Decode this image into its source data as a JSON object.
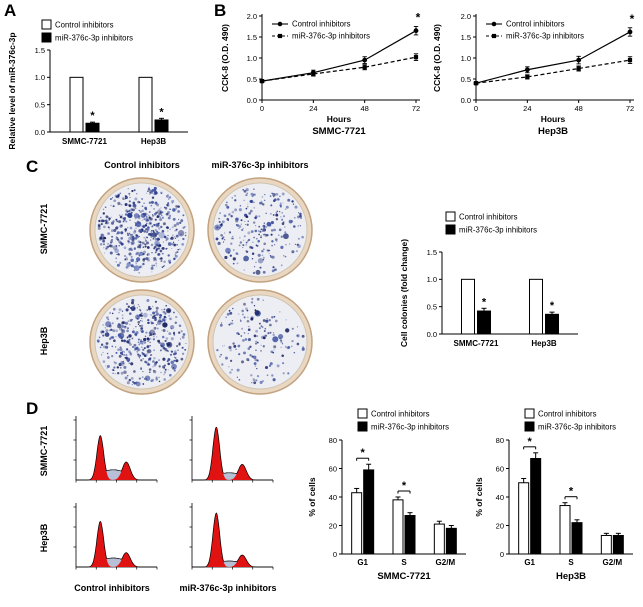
{
  "colors": {
    "bar_control": "#ffffff",
    "bar_inhibitor": "#000000",
    "axis": "#000000",
    "colony_palette": [
      "#1d2b76",
      "#2b3d92",
      "#3b51a3",
      "#16205e"
    ],
    "dish_rim": "#e9d7c2",
    "dish_rim_edge": "#c2a27f",
    "dish_inner": "#edeef3",
    "dish_inner_edge": "#cfc4b0",
    "flow_peak": "#e11212",
    "flow_s_region": "#b7c0d6"
  },
  "panel_labels": {
    "A": "A",
    "B": "B",
    "C": "C",
    "D": "D"
  },
  "panelC": {
    "col_headers": [
      "Control inhibitors",
      "miR-376c-3p inhibitors"
    ],
    "row_labels": [
      "SMMC-7721",
      "Hep3B"
    ],
    "dishes": [
      {
        "row": "SMMC-7721",
        "col": "Control inhibitors",
        "density": 520,
        "seed": 1
      },
      {
        "row": "SMMC-7721",
        "col": "miR-376c-3p inhibitors",
        "density": 250,
        "seed": 2
      },
      {
        "row": "Hep3B",
        "col": "Control inhibitors",
        "density": 430,
        "seed": 3
      },
      {
        "row": "Hep3B",
        "col": "miR-376c-3p inhibitors",
        "density": 160,
        "seed": 4
      }
    ]
  },
  "panelD": {
    "row_labels": [
      "SMMC-7721",
      "Hep3B"
    ],
    "col_labels": [
      "Control inhibitors",
      "miR-376c-3p inhibitors"
    ],
    "flow_plots": [
      {
        "row": "SMMC-7721",
        "col": "Control inhibitors",
        "g1": 0.74,
        "s": 0.17,
        "g2": 0.3
      },
      {
        "row": "SMMC-7721",
        "col": "miR-376c-3p inhibitors",
        "g1": 0.88,
        "s": 0.12,
        "g2": 0.26
      },
      {
        "row": "Hep3B",
        "col": "Control inhibitors",
        "g1": 0.76,
        "s": 0.15,
        "g2": 0.24
      },
      {
        "row": "Hep3B",
        "col": "miR-376c-3p inhibitors",
        "g1": 0.9,
        "s": 0.1,
        "g2": 0.2
      }
    ]
  },
  "chart_data": [
    {
      "id": "a_bar",
      "type": "bar",
      "ylabel": "Relative level of miR-376c-3p",
      "categories": [
        "SMMC-7721",
        "Hep3B"
      ],
      "series": [
        {
          "name": "Control inhibitors",
          "values": [
            1.0,
            1.0
          ],
          "errors": [
            0,
            0
          ]
        },
        {
          "name": "miR-376c-3p inhibitors",
          "values": [
            0.16,
            0.22
          ],
          "errors": [
            0.02,
            0.03
          ]
        }
      ],
      "ylim": [
        0,
        1.5
      ],
      "yticks": [
        0,
        0.5,
        1,
        1.5
      ],
      "sig": [
        "*",
        "*"
      ],
      "legend_position": "top-left",
      "grid": false
    },
    {
      "id": "b_smmc",
      "type": "line",
      "ylabel": "CCK-8 (O.D. 490)",
      "xlabel": "Hours",
      "sublabel": "SMMC-7721",
      "x": [
        0,
        24,
        48,
        72
      ],
      "xticks": [
        0,
        24,
        48,
        72
      ],
      "series": [
        {
          "name": "Control inhibitors",
          "marker": "circle",
          "dash": false,
          "values": [
            0.45,
            0.65,
            0.95,
            1.65
          ],
          "errors": [
            0.03,
            0.06,
            0.08,
            0.1
          ]
        },
        {
          "name": "miR-376c-3p inhibitors",
          "marker": "square",
          "dash": true,
          "values": [
            0.45,
            0.62,
            0.78,
            1.02
          ],
          "errors": [
            0.03,
            0.05,
            0.06,
            0.08
          ]
        }
      ],
      "ylim": [
        0,
        2
      ],
      "yticks": [
        0,
        0.5,
        1,
        1.5,
        2
      ],
      "star": "*",
      "legend_position": "top-left",
      "grid": false
    },
    {
      "id": "b_hep3b",
      "type": "line",
      "ylabel": "CCK-8 (O.D. 490)",
      "xlabel": "Hours",
      "sublabel": "Hep3B",
      "x": [
        0,
        24,
        48,
        72
      ],
      "xticks": [
        0,
        24,
        48,
        72
      ],
      "series": [
        {
          "name": "Control inhibitors",
          "marker": "circle",
          "dash": false,
          "values": [
            0.4,
            0.72,
            0.95,
            1.62
          ],
          "errors": [
            0.03,
            0.07,
            0.09,
            0.1
          ]
        },
        {
          "name": "miR-376c-3p inhibitors",
          "marker": "square",
          "dash": true,
          "values": [
            0.4,
            0.55,
            0.75,
            0.95
          ],
          "errors": [
            0.03,
            0.05,
            0.06,
            0.08
          ]
        }
      ],
      "ylim": [
        0,
        2
      ],
      "yticks": [
        0,
        0.5,
        1,
        1.5,
        2
      ],
      "star": "*",
      "legend_position": "top-left",
      "grid": false
    },
    {
      "id": "c_bar",
      "type": "bar",
      "ylabel": "Cell colonies (fold change)",
      "categories": [
        "SMMC-7721",
        "Hep3B"
      ],
      "series": [
        {
          "name": "Control inhibitors",
          "values": [
            1.0,
            1.0
          ],
          "errors": [
            0,
            0
          ]
        },
        {
          "name": "miR-376c-3p inhibitors",
          "values": [
            0.42,
            0.36
          ],
          "errors": [
            0.05,
            0.04
          ]
        }
      ],
      "ylim": [
        0,
        1.5
      ],
      "yticks": [
        0,
        0.5,
        1,
        1.5
      ],
      "sig": [
        "*",
        "*"
      ],
      "legend_position": "top",
      "grid": false
    },
    {
      "id": "d_smmc",
      "type": "bar",
      "ylabel": "% of cells",
      "sublabel": "SMMC-7721",
      "categories": [
        "G1",
        "S",
        "G2/M"
      ],
      "series": [
        {
          "name": "Control inhibitors",
          "values": [
            43,
            38,
            21
          ],
          "errors": [
            3,
            2,
            2
          ]
        },
        {
          "name": "miR-376c-3p inhibitors",
          "values": [
            59,
            27,
            18
          ],
          "errors": [
            4,
            2,
            2
          ]
        }
      ],
      "ylim": [
        0,
        80
      ],
      "yticks": [
        0,
        20,
        40,
        60,
        80
      ],
      "sig": [
        "*",
        "*",
        ""
      ],
      "legend_position": "top-right",
      "grid": false
    },
    {
      "id": "d_hep3b",
      "type": "bar",
      "ylabel": "% of cells",
      "sublabel": "Hep3B",
      "categories": [
        "G1",
        "S",
        "G2/M"
      ],
      "series": [
        {
          "name": "Control inhibitors",
          "values": [
            50,
            34,
            13
          ],
          "errors": [
            3,
            2,
            1.5
          ]
        },
        {
          "name": "miR-376c-3p inhibitors",
          "values": [
            67,
            22,
            13
          ],
          "errors": [
            4,
            2,
            1.5
          ]
        }
      ],
      "ylim": [
        0,
        80
      ],
      "yticks": [
        0,
        20,
        40,
        60,
        80
      ],
      "sig": [
        "*",
        "*",
        ""
      ],
      "legend_position": "top-right",
      "grid": false
    }
  ]
}
